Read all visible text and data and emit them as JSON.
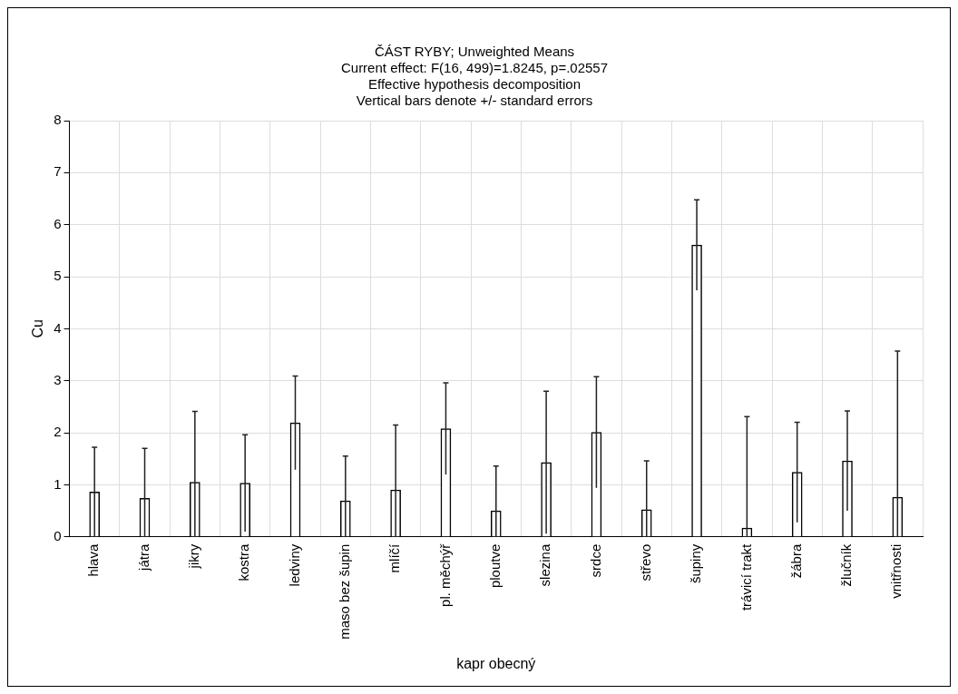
{
  "chart_data": {
    "type": "bar",
    "title": [
      "ČÁST RYBY; Unweighted Means",
      "Current effect: F(16, 499)=1.8245, p=.02557",
      "Effective hypothesis decomposition",
      "Vertical bars denote +/- standard errors"
    ],
    "xlabel": "kapr obecný",
    "ylabel": "Cu",
    "categories": [
      "hlava",
      "játra",
      "jikry",
      "kostra",
      "ledviny",
      "maso bez šupin",
      "mlíčí",
      "pl. měchýř",
      "ploutve",
      "slezina",
      "srdce",
      "střevo",
      "šupiny",
      "trávicí trakt",
      "žábra",
      "žlučník",
      "vnitřnosti"
    ],
    "values": [
      0.86,
      0.74,
      1.05,
      1.03,
      2.19,
      0.69,
      0.9,
      2.08,
      0.5,
      1.43,
      2.01,
      0.52,
      5.61,
      0.17,
      1.24,
      1.46,
      0.76
    ],
    "errors": [
      0.86,
      [
        0,
        1.7
      ],
      [
        0,
        2.41
      ],
      0.93,
      0.9,
      [
        0,
        1.55
      ],
      [
        0,
        2.15
      ],
      0.88,
      [
        0,
        1.36
      ],
      1.37,
      1.07,
      [
        0,
        1.46
      ],
      0.87,
      [
        0,
        2.31
      ],
      0.96,
      0.96,
      [
        0,
        3.57
      ]
    ],
    "color": "#ffffff",
    "ylim": [
      0,
      8
    ],
    "yticks": [
      0,
      1,
      2,
      3,
      4,
      5,
      6,
      7,
      8
    ],
    "grid": true
  }
}
